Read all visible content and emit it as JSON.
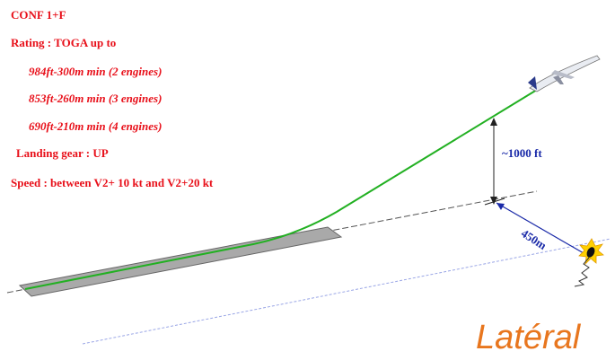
{
  "notes": {
    "conf": "CONF 1+F",
    "rating": "Rating : TOGA up to",
    "rating_lines": [
      "984ft-300m min (2 engines)",
      "853ft-260m min (3 engines)",
      "690ft-210m min (4 engines)"
    ],
    "landing_gear": "Landing gear : UP",
    "speed": "Speed : between V2+ 10 kt and V2+20 kt"
  },
  "labels": {
    "height": "~1000 ft",
    "lateral_distance": "450m",
    "caption": "Latéral"
  },
  "colors": {
    "notes": "#e8101a",
    "dimensions": "#1a2aa8",
    "flight_path": "#22b022",
    "runway": "#a9a9a9",
    "caption": "#e8761e"
  },
  "icons": [
    "aircraft-icon",
    "explosion-icon"
  ]
}
